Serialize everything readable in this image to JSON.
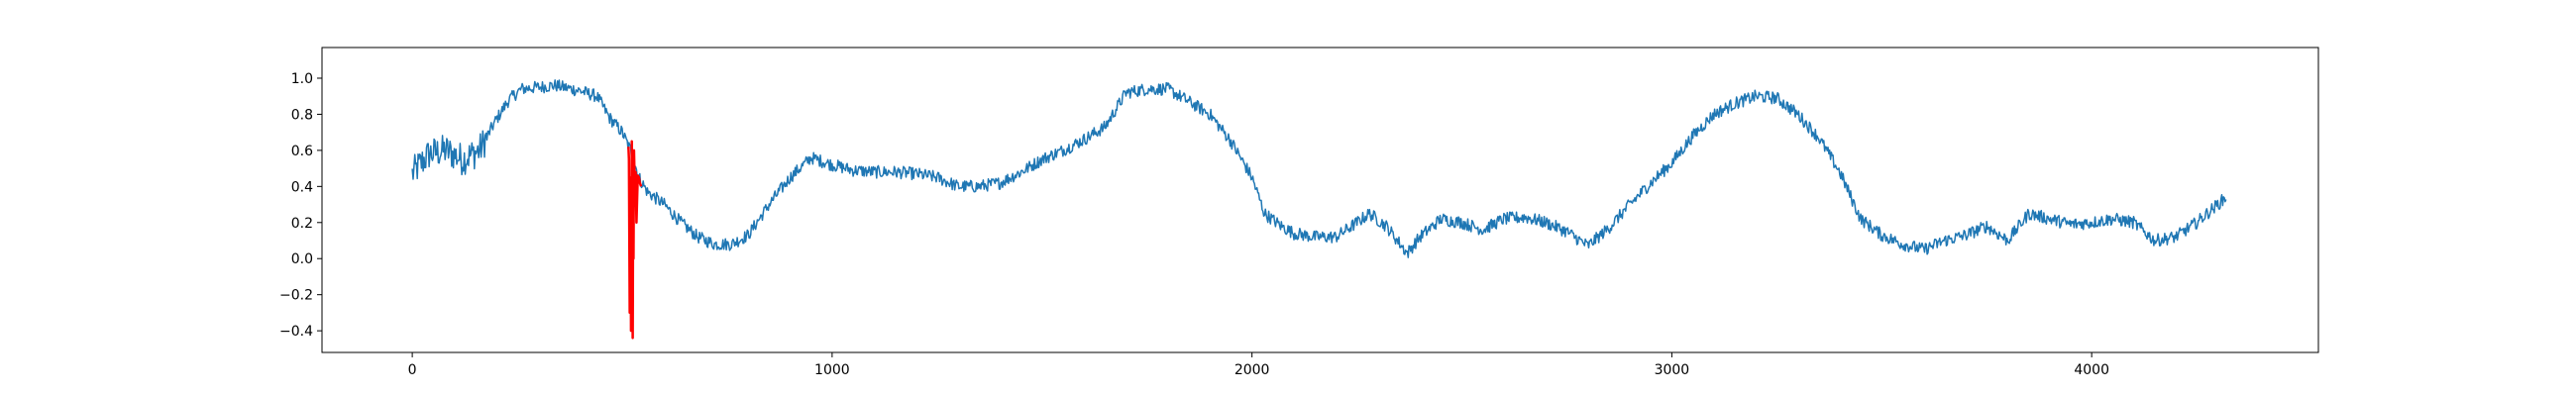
{
  "chart_data": {
    "type": "line",
    "title": "",
    "xlabel": "",
    "ylabel": "",
    "xlim": [
      -215,
      4540
    ],
    "ylim": [
      -0.52,
      1.17
    ],
    "grid": false,
    "legend": "none",
    "x_ticks": [
      0,
      1000,
      2000,
      3000,
      4000
    ],
    "x_tick_labels": [
      "0",
      "1000",
      "2000",
      "3000",
      "4000"
    ],
    "y_ticks": [
      -0.4,
      -0.2,
      0.0,
      0.2,
      0.4,
      0.6,
      0.8,
      1.0
    ],
    "y_tick_labels": [
      "−0.4",
      "−0.2",
      "0.0",
      "0.2",
      "0.4",
      "0.6",
      "0.8",
      "1.0"
    ],
    "series": [
      {
        "color": "#1f77b4",
        "noise": 0.035,
        "points": [
          [
            0,
            0.47
          ],
          [
            40,
            0.58
          ],
          [
            80,
            0.6
          ],
          [
            120,
            0.55
          ],
          [
            160,
            0.6
          ],
          [
            200,
            0.77
          ],
          [
            230,
            0.88
          ],
          [
            260,
            0.94
          ],
          [
            300,
            0.95
          ],
          [
            340,
            0.96
          ],
          [
            400,
            0.93
          ],
          [
            440,
            0.9
          ],
          [
            470,
            0.78
          ],
          [
            500,
            0.7
          ],
          [
            520,
            0.6
          ],
          [
            540,
            0.45
          ],
          [
            560,
            0.37
          ],
          [
            600,
            0.3
          ],
          [
            640,
            0.2
          ],
          [
            680,
            0.12
          ],
          [
            720,
            0.08
          ],
          [
            760,
            0.08
          ],
          [
            800,
            0.13
          ],
          [
            850,
            0.3
          ],
          [
            900,
            0.45
          ],
          [
            950,
            0.56
          ],
          [
            1000,
            0.52
          ],
          [
            1050,
            0.49
          ],
          [
            1100,
            0.48
          ],
          [
            1150,
            0.48
          ],
          [
            1200,
            0.47
          ],
          [
            1250,
            0.45
          ],
          [
            1300,
            0.4
          ],
          [
            1350,
            0.4
          ],
          [
            1400,
            0.42
          ],
          [
            1450,
            0.48
          ],
          [
            1500,
            0.55
          ],
          [
            1550,
            0.6
          ],
          [
            1600,
            0.66
          ],
          [
            1650,
            0.73
          ],
          [
            1700,
            0.92
          ],
          [
            1750,
            0.94
          ],
          [
            1800,
            0.94
          ],
          [
            1850,
            0.87
          ],
          [
            1900,
            0.8
          ],
          [
            1950,
            0.65
          ],
          [
            2000,
            0.45
          ],
          [
            2030,
            0.25
          ],
          [
            2070,
            0.18
          ],
          [
            2100,
            0.14
          ],
          [
            2150,
            0.12
          ],
          [
            2200,
            0.12
          ],
          [
            2250,
            0.2
          ],
          [
            2280,
            0.25
          ],
          [
            2320,
            0.18
          ],
          [
            2370,
            0.03
          ],
          [
            2400,
            0.12
          ],
          [
            2450,
            0.22
          ],
          [
            2500,
            0.2
          ],
          [
            2550,
            0.16
          ],
          [
            2600,
            0.22
          ],
          [
            2650,
            0.23
          ],
          [
            2700,
            0.2
          ],
          [
            2750,
            0.15
          ],
          [
            2800,
            0.07
          ],
          [
            2850,
            0.17
          ],
          [
            2900,
            0.3
          ],
          [
            2950,
            0.42
          ],
          [
            3000,
            0.53
          ],
          [
            3050,
            0.68
          ],
          [
            3100,
            0.8
          ],
          [
            3150,
            0.86
          ],
          [
            3200,
            0.9
          ],
          [
            3250,
            0.89
          ],
          [
            3300,
            0.8
          ],
          [
            3350,
            0.67
          ],
          [
            3400,
            0.48
          ],
          [
            3450,
            0.22
          ],
          [
            3500,
            0.13
          ],
          [
            3550,
            0.08
          ],
          [
            3600,
            0.05
          ],
          [
            3650,
            0.1
          ],
          [
            3700,
            0.13
          ],
          [
            3750,
            0.18
          ],
          [
            3800,
            0.1
          ],
          [
            3850,
            0.25
          ],
          [
            3900,
            0.22
          ],
          [
            3950,
            0.19
          ],
          [
            4000,
            0.2
          ],
          [
            4050,
            0.22
          ],
          [
            4100,
            0.2
          ],
          [
            4150,
            0.1
          ],
          [
            4200,
            0.12
          ],
          [
            4250,
            0.2
          ],
          [
            4300,
            0.3
          ],
          [
            4320,
            0.34
          ]
        ]
      },
      {
        "color": "#ff0000",
        "noise": 0,
        "points": [
          [
            515,
            0.62
          ],
          [
            516,
            0.55
          ],
          [
            518,
            -0.3
          ],
          [
            520,
            0.45
          ],
          [
            521,
            -0.4
          ],
          [
            523,
            0.65
          ],
          [
            525,
            -0.44
          ],
          [
            526,
            0.3
          ],
          [
            527,
            0.0
          ],
          [
            528,
            0.6
          ],
          [
            530,
            0.4
          ],
          [
            532,
            0.48
          ],
          [
            534,
            0.2
          ],
          [
            537,
            0.46
          ],
          [
            540,
            0.45
          ],
          [
            542,
            0.42
          ],
          [
            545,
            0.4
          ]
        ]
      }
    ]
  }
}
